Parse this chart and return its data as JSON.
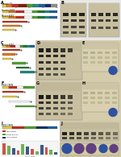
{
  "background": "#f0eeea",
  "figure_size": [
    1.5,
    1.95
  ],
  "dpi": 100,
  "dc": {
    "yellow": "#e8c840",
    "orange": "#e07820",
    "red": "#c03020",
    "dark_red": "#802010",
    "green": "#50a030",
    "dark_green": "#207830",
    "teal": "#208880",
    "blue": "#2060a0",
    "dark_blue": "#103070",
    "gray": "#909090",
    "white": "#f8f8f8",
    "black": "#111111",
    "light_gray": "#d0d0d0"
  },
  "wb_bg": "#c8bfa0",
  "gel_bg": "#d8d0b0",
  "band_dark": "#101010",
  "band_mid": "#404040",
  "blue_stain": "#3050a0",
  "purple_stain": "#604080"
}
